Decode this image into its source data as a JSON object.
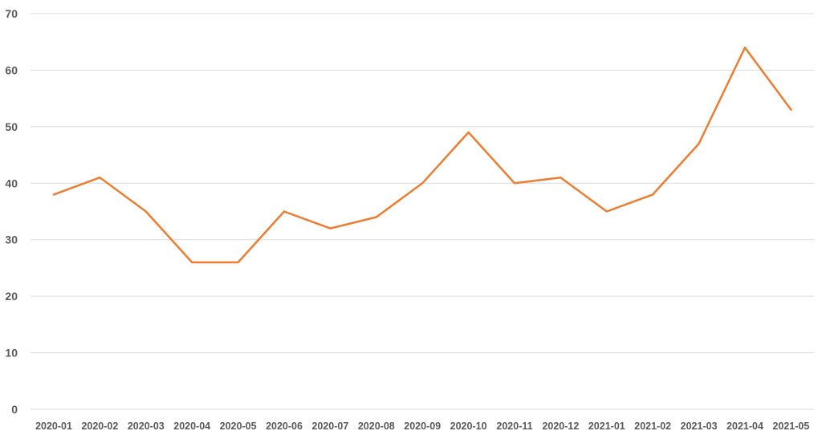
{
  "chart_data": {
    "type": "line",
    "title": "",
    "xlabel": "",
    "ylabel": "",
    "categories": [
      "2020-01",
      "2020-02",
      "2020-03",
      "2020-04",
      "2020-05",
      "2020-06",
      "2020-07",
      "2020-08",
      "2020-09",
      "2020-10",
      "2020-11",
      "2020-12",
      "2021-01",
      "2021-02",
      "2021-03",
      "2021-04",
      "2021-05"
    ],
    "series": [
      {
        "values": [
          38,
          41,
          35,
          26,
          26,
          35,
          32,
          34,
          40,
          49,
          40,
          41,
          35,
          38,
          47,
          64,
          53
        ]
      }
    ],
    "ylim": [
      0,
      70
    ],
    "yticks": [
      0,
      10,
      20,
      30,
      40,
      50,
      60,
      70
    ],
    "grid": true,
    "legend": "none",
    "colors": {
      "line": "#ED7D31",
      "grid": "#D9D9D9",
      "tick_text": "#595959"
    }
  }
}
